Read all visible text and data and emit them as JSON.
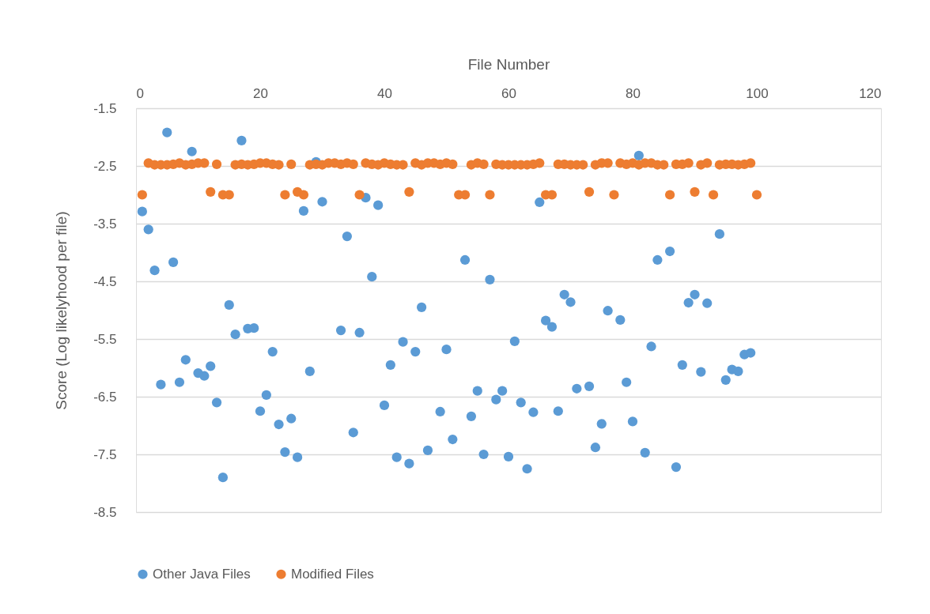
{
  "chart_data": {
    "type": "scatter",
    "xlabel": "File Number",
    "ylabel": "Score (Log likelyhood per file)",
    "xlim": [
      0,
      120
    ],
    "xticks": [
      0,
      20,
      40,
      60,
      80,
      100,
      120
    ],
    "ylim": [
      -8.5,
      -1.5
    ],
    "yticks": [
      -1.5,
      -2.5,
      -3.5,
      -4.5,
      -5.5,
      -6.5,
      -7.5,
      -8.5
    ],
    "grid": "y",
    "legend": "bottom",
    "marker": "circle",
    "x": [
      1,
      2,
      3,
      4,
      5,
      6,
      7,
      8,
      9,
      10,
      11,
      12,
      13,
      14,
      15,
      16,
      17,
      18,
      19,
      20,
      21,
      22,
      23,
      24,
      25,
      26,
      27,
      28,
      29,
      30,
      31,
      32,
      33,
      34,
      35,
      36,
      37,
      38,
      39,
      40,
      41,
      42,
      43,
      44,
      45,
      46,
      47,
      48,
      49,
      50,
      51,
      52,
      53,
      54,
      55,
      56,
      57,
      58,
      59,
      60,
      61,
      62,
      63,
      64,
      65,
      66,
      67,
      68,
      69,
      70,
      71,
      72,
      73,
      74,
      75,
      76,
      77,
      78,
      79,
      80,
      81,
      82,
      83,
      84,
      85,
      86,
      87,
      88,
      89,
      90,
      91,
      92,
      93,
      94,
      95,
      96,
      97,
      98,
      99,
      100
    ],
    "series": [
      {
        "name": "Other Java Files",
        "color": "#5b9bd5",
        "values": [
          -3.29,
          -3.6,
          -4.31,
          -6.29,
          -1.92,
          -4.17,
          -6.25,
          -5.86,
          -2.25,
          -6.09,
          -6.14,
          -5.97,
          -6.6,
          -7.9,
          -4.91,
          -5.42,
          -2.06,
          -5.32,
          -5.31,
          -6.75,
          -6.47,
          -5.72,
          -6.98,
          -7.46,
          -6.88,
          -7.55,
          -3.28,
          -6.06,
          -2.43,
          -3.12,
          null,
          null,
          -5.35,
          -3.72,
          -7.12,
          -5.39,
          -3.05,
          -4.42,
          -3.18,
          -6.65,
          -5.95,
          -7.55,
          -5.55,
          -7.66,
          -5.72,
          -4.95,
          -7.43,
          null,
          -6.76,
          -5.68,
          -7.24,
          null,
          -4.13,
          -6.84,
          -6.4,
          -7.5,
          -4.47,
          -6.55,
          -6.4,
          -7.54,
          -5.54,
          -6.6,
          -7.75,
          -6.77,
          -3.13,
          -5.18,
          -5.29,
          -6.75,
          -4.73,
          -4.86,
          -6.36,
          null,
          -6.32,
          -7.38,
          -6.97,
          -5.01,
          null,
          -5.17,
          -6.25,
          -6.93,
          -2.32,
          -7.47,
          -5.63,
          -4.13,
          null,
          -3.98,
          -7.72,
          -5.95,
          -4.87,
          -4.73,
          -6.07,
          -4.88,
          null,
          -3.68,
          -6.21,
          -6.03,
          -6.06,
          -5.77,
          -5.74,
          null
        ]
      },
      {
        "name": "Modified Files",
        "color": "#ed7d31",
        "values": [
          -3.0,
          -2.45,
          -2.48,
          -2.48,
          -2.48,
          -2.47,
          -2.45,
          -2.48,
          -2.47,
          -2.45,
          -2.45,
          -2.95,
          -2.47,
          -3.0,
          -3.0,
          -2.48,
          -2.47,
          -2.48,
          -2.47,
          -2.45,
          -2.45,
          -2.47,
          -2.48,
          -3.0,
          -2.47,
          -2.95,
          -3.0,
          -2.48,
          -2.47,
          -2.48,
          -2.45,
          -2.45,
          -2.47,
          -2.45,
          -2.47,
          -3.0,
          -2.45,
          -2.47,
          -2.48,
          -2.45,
          -2.47,
          -2.48,
          -2.48,
          -2.95,
          -2.45,
          -2.48,
          -2.45,
          -2.45,
          -2.47,
          -2.45,
          -2.47,
          -3.0,
          -3.0,
          -2.48,
          -2.45,
          -2.47,
          -3.0,
          -2.47,
          -2.48,
          -2.48,
          -2.48,
          -2.48,
          -2.48,
          -2.47,
          -2.45,
          -3.0,
          -3.0,
          -2.47,
          -2.47,
          -2.48,
          -2.48,
          -2.48,
          -2.95,
          -2.48,
          -2.45,
          -2.45,
          -3.0,
          -2.45,
          -2.47,
          -2.45,
          -2.48,
          -2.45,
          -2.45,
          -2.48,
          -2.48,
          -3.0,
          -2.47,
          -2.47,
          -2.45,
          -2.95,
          -2.48,
          -2.45,
          -3.0,
          -2.48,
          -2.47,
          -2.47,
          -2.48,
          -2.47,
          -2.45,
          -3.0
        ]
      }
    ]
  }
}
